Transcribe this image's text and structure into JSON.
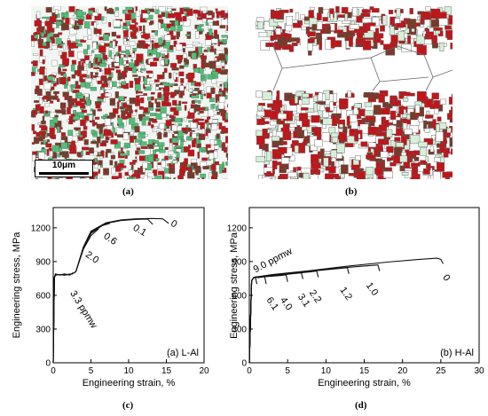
{
  "figure": {
    "panels": [
      {
        "id": "a",
        "caption": "(a)",
        "kind": "micrograph",
        "scale_bar": "10μm"
      },
      {
        "id": "b",
        "caption": "(b)",
        "kind": "micrograph"
      },
      {
        "id": "c",
        "caption": "(c)"
      },
      {
        "id": "d",
        "caption": "(d)"
      }
    ],
    "micrograph_colors": {
      "red": "#c0161a",
      "green": "#4fbf78",
      "white": "#ffffff",
      "boundary": "#555555"
    }
  },
  "chart_data": [
    {
      "type": "line",
      "panel_label": "(a) L-Al",
      "xlabel": "Engineering strain, %",
      "ylabel": "Engineering stress, MPa",
      "xlim": [
        0,
        20
      ],
      "ylim": [
        0,
        1380
      ],
      "xticks": [
        0,
        5,
        10,
        15,
        20
      ],
      "yticks": [
        0,
        300,
        600,
        900,
        1200
      ],
      "grid": false,
      "series": [
        {
          "label": "3.3 ppmw",
          "x": [
            0,
            0.15,
            0.3,
            0.8,
            1.5,
            2.2,
            2.6
          ],
          "y": [
            0,
            760,
            790,
            780,
            790,
            780,
            800
          ]
        },
        {
          "label": "2.0",
          "x": [
            0,
            0.15,
            0.4,
            1.5,
            2.5,
            3.0,
            4.0,
            5.0,
            6.0
          ],
          "y": [
            0,
            760,
            785,
            780,
            790,
            810,
            1010,
            1130,
            1190
          ]
        },
        {
          "label": "0.6",
          "x": [
            0,
            0.15,
            0.4,
            1.5,
            2.5,
            3.0,
            4.0,
            5.0,
            6.5,
            7.5
          ],
          "y": [
            0,
            760,
            785,
            780,
            790,
            810,
            1020,
            1150,
            1220,
            1240
          ]
        },
        {
          "label": "0.1",
          "x": [
            0,
            0.15,
            0.4,
            1.5,
            2.5,
            3.0,
            4.0,
            5.0,
            7.0,
            9.0,
            11.0,
            12.5,
            13.2
          ],
          "y": [
            0,
            760,
            785,
            780,
            790,
            810,
            1030,
            1160,
            1240,
            1265,
            1275,
            1278,
            1230
          ]
        },
        {
          "label": "0",
          "x": [
            0,
            0.15,
            0.4,
            1.5,
            2.5,
            3.0,
            4.0,
            5.0,
            7.0,
            9.0,
            11.0,
            13.0,
            14.5,
            15.3
          ],
          "y": [
            0,
            760,
            785,
            780,
            790,
            810,
            1030,
            1170,
            1245,
            1270,
            1280,
            1283,
            1280,
            1240
          ]
        }
      ]
    },
    {
      "type": "line",
      "panel_label": "(b) H-Al",
      "xlabel": "Engineering  strain, %",
      "ylabel": "Engineering  stress, MPa",
      "xlim": [
        0,
        30
      ],
      "ylim": [
        0,
        1380
      ],
      "xticks": [
        0,
        5,
        10,
        15,
        20,
        25,
        30
      ],
      "yticks": [
        0,
        300,
        600,
        900,
        1200
      ],
      "grid": false,
      "series": [
        {
          "label": "9.0 ppmw",
          "x": [
            0,
            0.3,
            0.6,
            0.8,
            1.0
          ],
          "y": [
            0,
            730,
            760,
            755,
            700
          ]
        },
        {
          "label": "6.1",
          "x": [
            0,
            0.3,
            0.6,
            1.2,
            2.0,
            2.2
          ],
          "y": [
            0,
            730,
            760,
            758,
            765,
            700
          ]
        },
        {
          "label": "4.0",
          "x": [
            0,
            0.3,
            0.6,
            2.0,
            4.0,
            4.8,
            5.0
          ],
          "y": [
            0,
            730,
            760,
            765,
            775,
            782,
            720
          ]
        },
        {
          "label": "3.1",
          "x": [
            0,
            0.3,
            0.6,
            2.0,
            4.0,
            6.0,
            6.8,
            7.0
          ],
          "y": [
            0,
            730,
            760,
            770,
            780,
            795,
            800,
            745
          ]
        },
        {
          "label": "2.2",
          "x": [
            0,
            0.3,
            0.6,
            2.0,
            5.0,
            8.0,
            8.8,
            9.0
          ],
          "y": [
            0,
            730,
            760,
            770,
            788,
            808,
            815,
            760
          ]
        },
        {
          "label": "1.2",
          "x": [
            0,
            0.3,
            0.6,
            3.0,
            6.0,
            9.0,
            12.0,
            12.8,
            13.0
          ],
          "y": [
            0,
            730,
            760,
            778,
            800,
            820,
            840,
            845,
            790
          ]
        },
        {
          "label": "1.0",
          "x": [
            0,
            0.3,
            0.6,
            3.0,
            7.0,
            11.0,
            15.0,
            16.8,
            17.0
          ],
          "y": [
            0,
            730,
            760,
            780,
            810,
            838,
            860,
            870,
            815
          ]
        },
        {
          "label": "0",
          "x": [
            0,
            0.3,
            0.6,
            3.0,
            8.0,
            13.0,
            18.0,
            22.0,
            24.5,
            25.0,
            25.3
          ],
          "y": [
            0,
            730,
            760,
            785,
            820,
            860,
            895,
            918,
            930,
            920,
            880
          ]
        }
      ]
    }
  ]
}
